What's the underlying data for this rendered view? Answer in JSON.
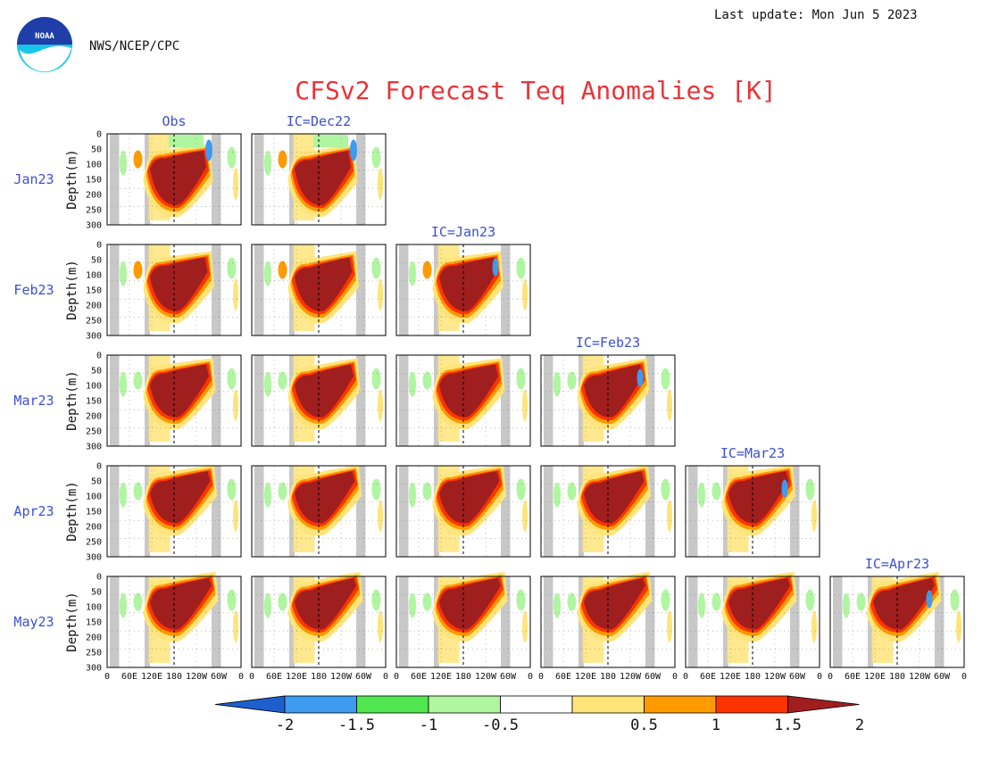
{
  "header": {
    "last_update": "Last update: Mon Jun 5 2023",
    "agency": "NWS/NCEP/CPC",
    "logo_text": "NOAA"
  },
  "chart_data": {
    "type": "heatmap",
    "title": "CFSv2 Forecast Teq Anomalies [K]",
    "row_labels": [
      "Jan23",
      "Feb23",
      "Mar23",
      "Apr23",
      "May23"
    ],
    "column_headers": [
      "Obs",
      "IC=Dec22",
      "IC=Jan23",
      "IC=Feb23",
      "IC=Mar23",
      "IC=Apr23"
    ],
    "ylabel": "Depth(m)",
    "y_ticks": [
      "0",
      "50",
      "100",
      "150",
      "200",
      "250",
      "300"
    ],
    "ylim": [
      300,
      0
    ],
    "x_ticks": [
      "0",
      "60E",
      "120E",
      "180",
      "120W",
      "60W",
      "0"
    ],
    "colorbar": {
      "labels": [
        "-2",
        "-1.5",
        "-1",
        "-0.5",
        "0.5",
        "1",
        "1.5",
        "2"
      ],
      "colors": [
        "#1e5fd0",
        "#3d9bf0",
        "#4fe64f",
        "#b0f5a0",
        "#ffffff",
        "#ffe47a",
        "#ff9a00",
        "#ff3300",
        "#a01e1e"
      ]
    }
  }
}
